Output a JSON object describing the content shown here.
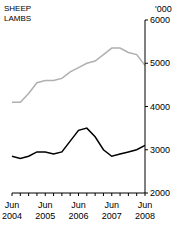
{
  "chart_data": {
    "type": "line",
    "y_label": "'000",
    "categories": [
      "Jun 2004",
      null,
      null,
      null,
      "Jun 2005",
      null,
      null,
      null,
      "Jun 2006",
      null,
      null,
      null,
      "Jun 2007",
      null,
      null,
      null,
      "Jun 2008"
    ],
    "series": [
      {
        "name": "SHEEP",
        "color": "#000000",
        "values": [
          2850,
          2800,
          2850,
          2950,
          2950,
          2900,
          2950,
          3200,
          3450,
          3500,
          3300,
          3000,
          2850,
          2900,
          2950,
          3000,
          3100
        ]
      },
      {
        "name": "LAMBS",
        "color": "#b0b0b0",
        "values": [
          4100,
          4100,
          4300,
          4550,
          4600,
          4600,
          4650,
          4800,
          4900,
          5000,
          5050,
          5200,
          5350,
          5350,
          5250,
          5200,
          4950
        ]
      }
    ],
    "ylim": [
      2000,
      6000
    ],
    "yticks": [
      2000,
      3000,
      4000,
      5000,
      6000
    ],
    "grid": false,
    "tick_labels": true
  }
}
